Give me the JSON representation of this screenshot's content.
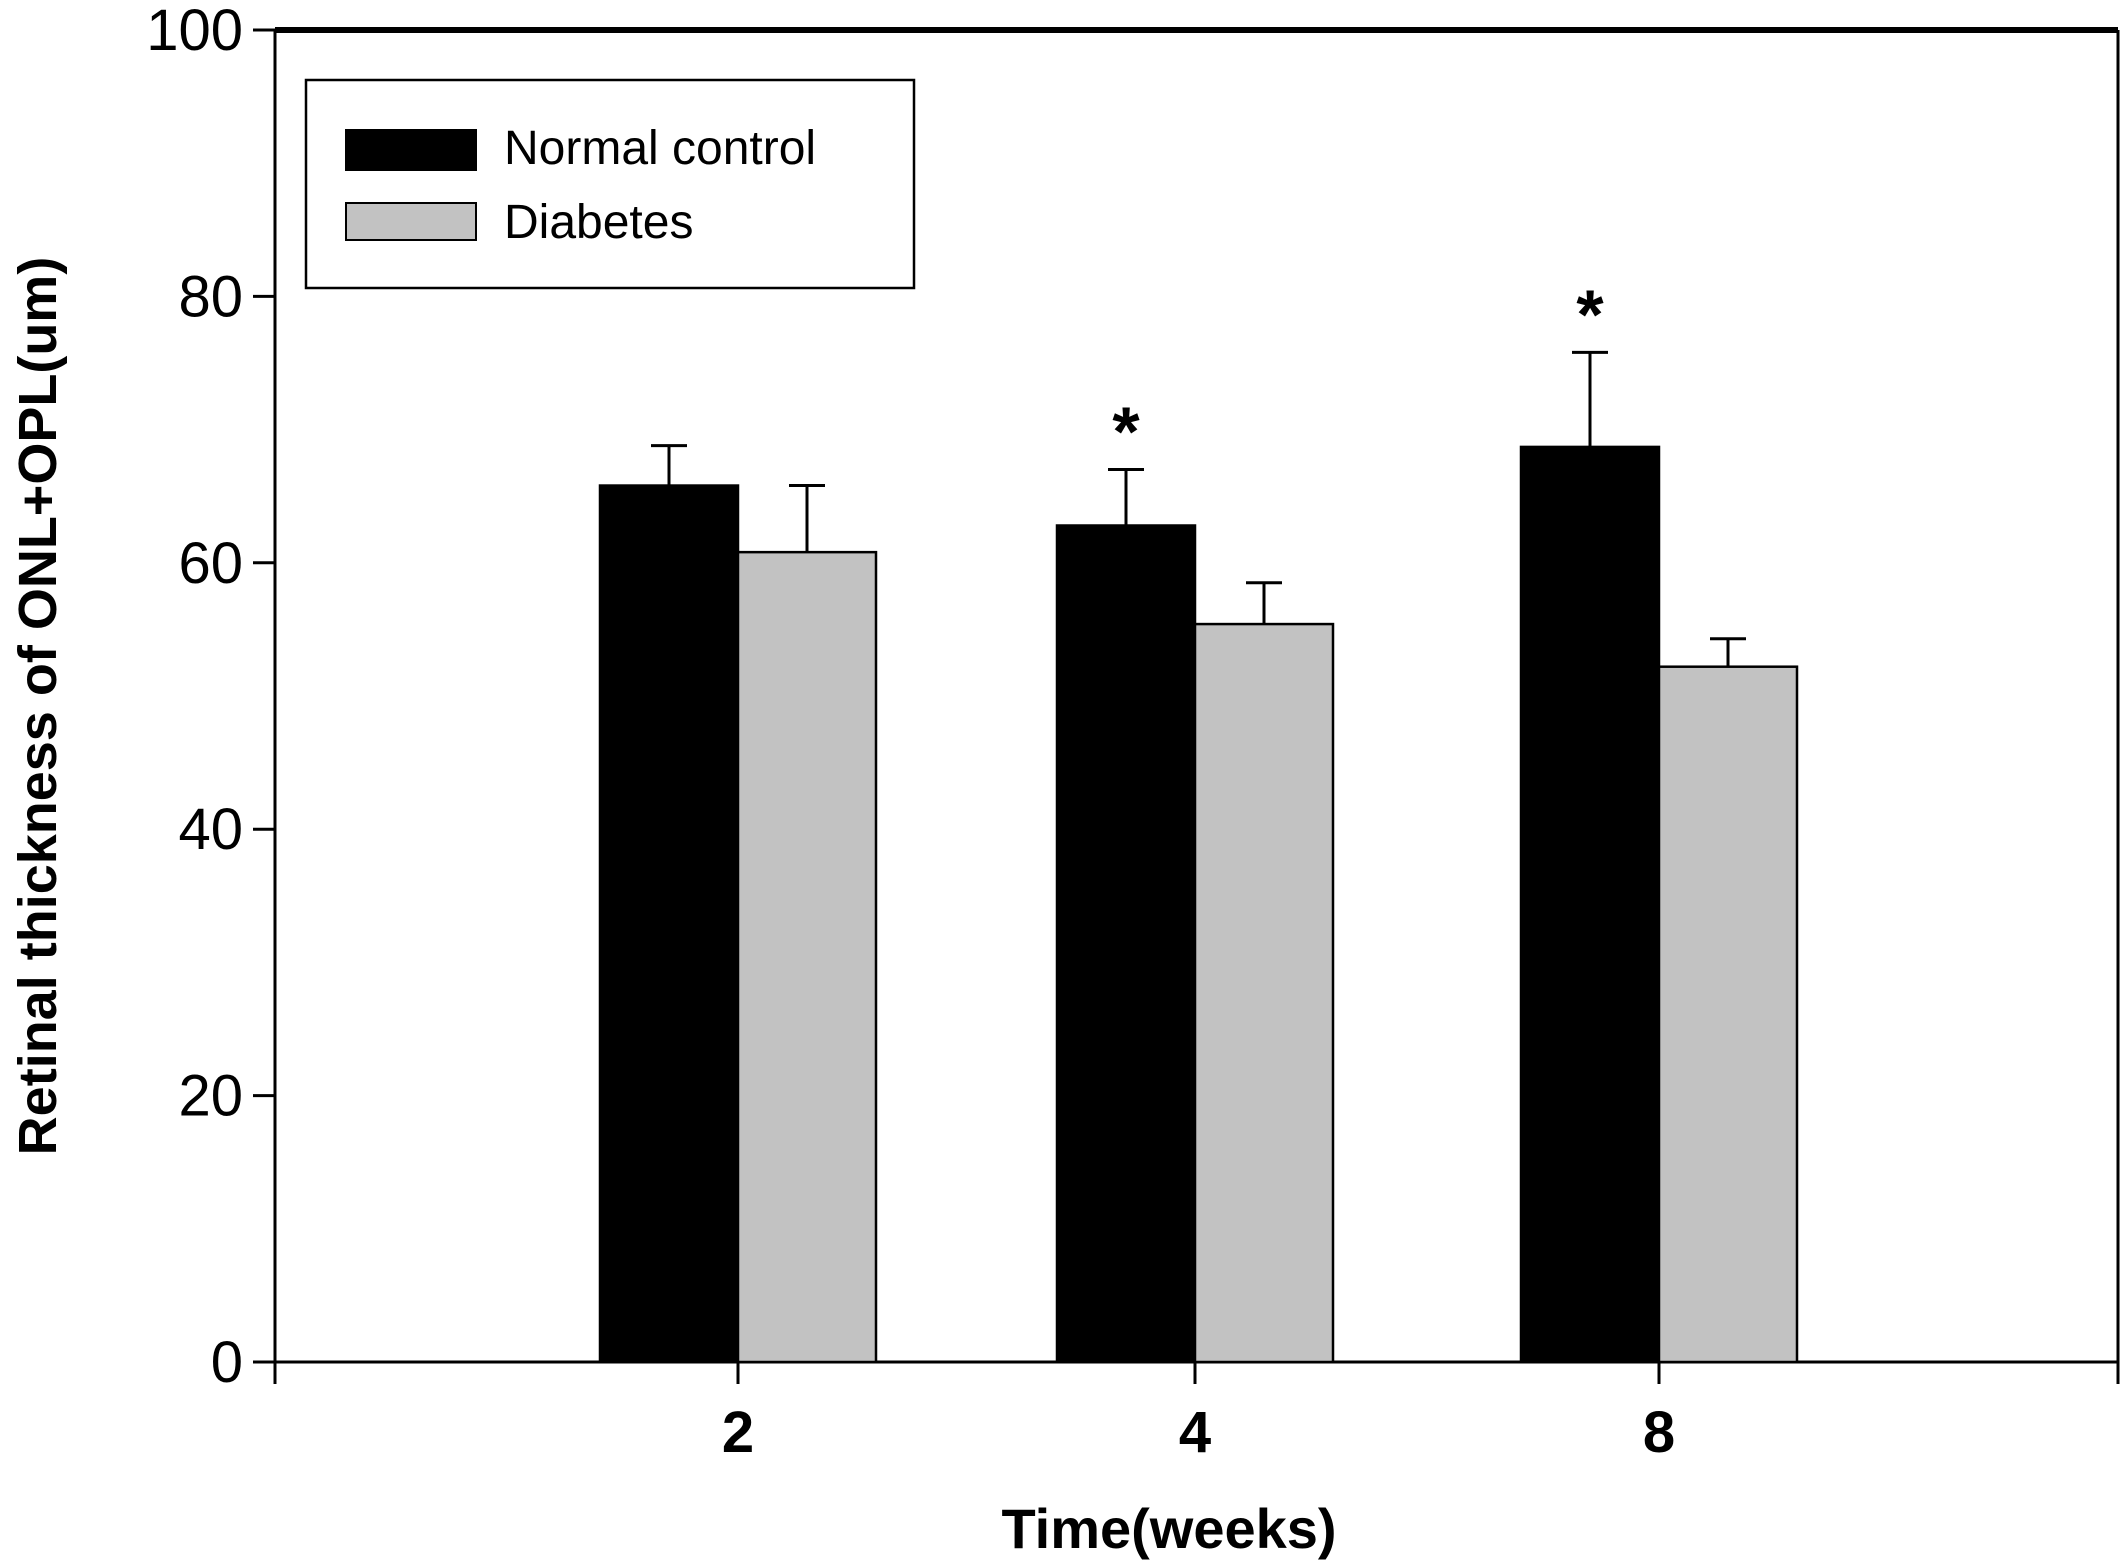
{
  "chart_data": {
    "type": "bar",
    "title": "",
    "xlabel": "Time(weeks)",
    "ylabel": "Retinal thickness of ONL+OPL(um)",
    "categories": [
      "2",
      "4",
      "8"
    ],
    "ylim": [
      0,
      100
    ],
    "yticks": [
      0,
      20,
      40,
      60,
      80,
      100
    ],
    "series": [
      {
        "name": "Normal control",
        "color": "#000000",
        "values": [
          65.8,
          62.8,
          68.7
        ],
        "errors": [
          3.0,
          4.2,
          7.1
        ]
      },
      {
        "name": "Diabetes",
        "color": "#c2c2c2",
        "values": [
          60.8,
          55.4,
          52.2
        ],
        "errors": [
          5.0,
          3.1,
          2.1
        ]
      }
    ],
    "annotations": [
      {
        "text": "*",
        "category": "4",
        "series": "Normal control"
      },
      {
        "text": "*",
        "category": "8",
        "series": "Normal control"
      }
    ],
    "legend": {
      "position": "top-left",
      "entries": [
        "Normal control",
        "Diabetes"
      ]
    },
    "grid": false
  }
}
